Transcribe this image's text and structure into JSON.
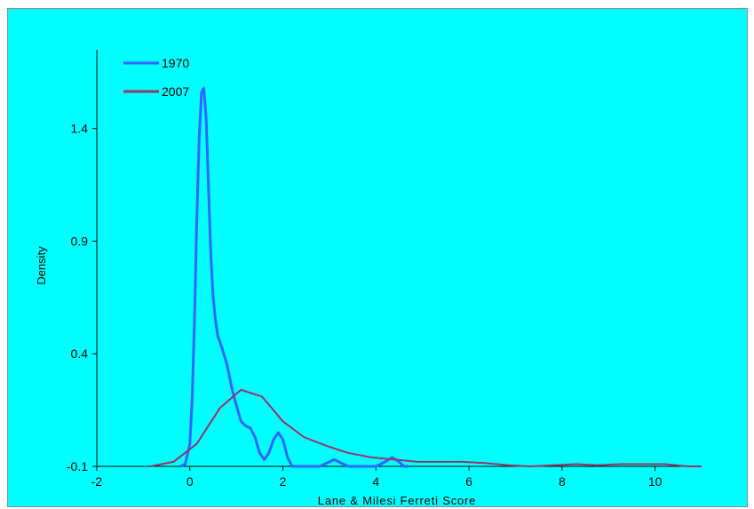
{
  "chart_data": {
    "type": "line",
    "title": "",
    "xlabel": "Lane & Milesi Ferreti Score",
    "ylabel": "Density",
    "xlim": [
      -2,
      11
    ],
    "ylim": [
      -0.1,
      1.75
    ],
    "xticks": [
      -2,
      0,
      2,
      4,
      6,
      8,
      10
    ],
    "yticks": [
      -0.1,
      0.4,
      0.9,
      1.4
    ],
    "ytick_labels": [
      "-0.1",
      "0.4",
      "0.9",
      "1.4"
    ],
    "grid": false,
    "legend_position": "top-left",
    "series": [
      {
        "name": "1970",
        "color": "#3366ff",
        "x": [
          -0.2,
          -0.1,
          0.0,
          0.05,
          0.1,
          0.15,
          0.2,
          0.25,
          0.3,
          0.35,
          0.4,
          0.45,
          0.5,
          0.55,
          0.6,
          0.65,
          0.7,
          0.8,
          0.9,
          1.0,
          1.1,
          1.2,
          1.3,
          1.4,
          1.5,
          1.6,
          1.7,
          1.8,
          1.9,
          2.0,
          2.1,
          2.2,
          2.4,
          2.6,
          2.8,
          3.0,
          3.1,
          3.2,
          3.4,
          3.6,
          3.8,
          4.0,
          4.2,
          4.35,
          4.5,
          4.6,
          4.7
        ],
        "y": [
          -0.1,
          -0.09,
          0.0,
          0.2,
          0.55,
          1.0,
          1.35,
          1.56,
          1.58,
          1.45,
          1.15,
          0.85,
          0.65,
          0.55,
          0.48,
          0.45,
          0.42,
          0.35,
          0.25,
          0.17,
          0.1,
          0.08,
          0.07,
          0.03,
          -0.04,
          -0.07,
          -0.04,
          0.02,
          0.05,
          0.02,
          -0.06,
          -0.1,
          -0.1,
          -0.1,
          -0.1,
          -0.08,
          -0.07,
          -0.08,
          -0.1,
          -0.1,
          -0.1,
          -0.1,
          -0.08,
          -0.06,
          -0.08,
          -0.1,
          -0.1
        ]
      },
      {
        "name": "2007",
        "color": "#993366",
        "x": [
          -0.85,
          -0.35,
          0.15,
          0.65,
          1.1,
          1.55,
          2.0,
          2.45,
          2.95,
          3.4,
          3.9,
          4.4,
          4.9,
          5.4,
          5.85,
          6.35,
          6.85,
          7.3,
          7.8,
          8.3,
          8.75,
          9.25,
          9.75,
          10.2,
          10.7,
          11.0
        ],
        "y": [
          -0.1,
          -0.08,
          0.0,
          0.16,
          0.24,
          0.21,
          0.1,
          0.03,
          -0.01,
          -0.04,
          -0.06,
          -0.07,
          -0.08,
          -0.08,
          -0.08,
          -0.085,
          -0.095,
          -0.1,
          -0.095,
          -0.09,
          -0.095,
          -0.09,
          -0.09,
          -0.09,
          -0.1,
          -0.1
        ]
      }
    ]
  }
}
